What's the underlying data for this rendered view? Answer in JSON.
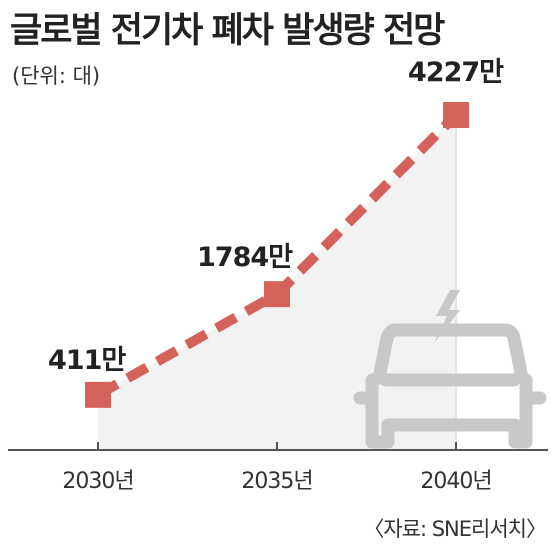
{
  "header": {
    "title": "글로벌 전기차 폐차 발생량 전망",
    "unit_note": "(단위: 대)"
  },
  "footer": {
    "source": "〈자료: SNE리서치〉"
  },
  "colors": {
    "series": "#d4625a",
    "axis": "#555555",
    "background_fill": "#f2f2f2",
    "car_icon": "#c8c8c8"
  },
  "decoration": {
    "icon": "electric-car-icon"
  },
  "chart_data": {
    "type": "line",
    "title": "글로벌 전기차 폐차 발생량 전망",
    "unit": "(단위: 대)",
    "xlabel": "",
    "ylabel": "",
    "categories": [
      "2030년",
      "2035년",
      "2040년"
    ],
    "series": [
      {
        "values": [
          4110000,
          17840000,
          42270000
        ],
        "data_labels": [
          "411만",
          "1784만",
          "4227만"
        ]
      }
    ],
    "ylim": [
      0,
      45000000
    ],
    "grid": false,
    "legend": "none",
    "line_style": "dashed",
    "marker": "square"
  }
}
